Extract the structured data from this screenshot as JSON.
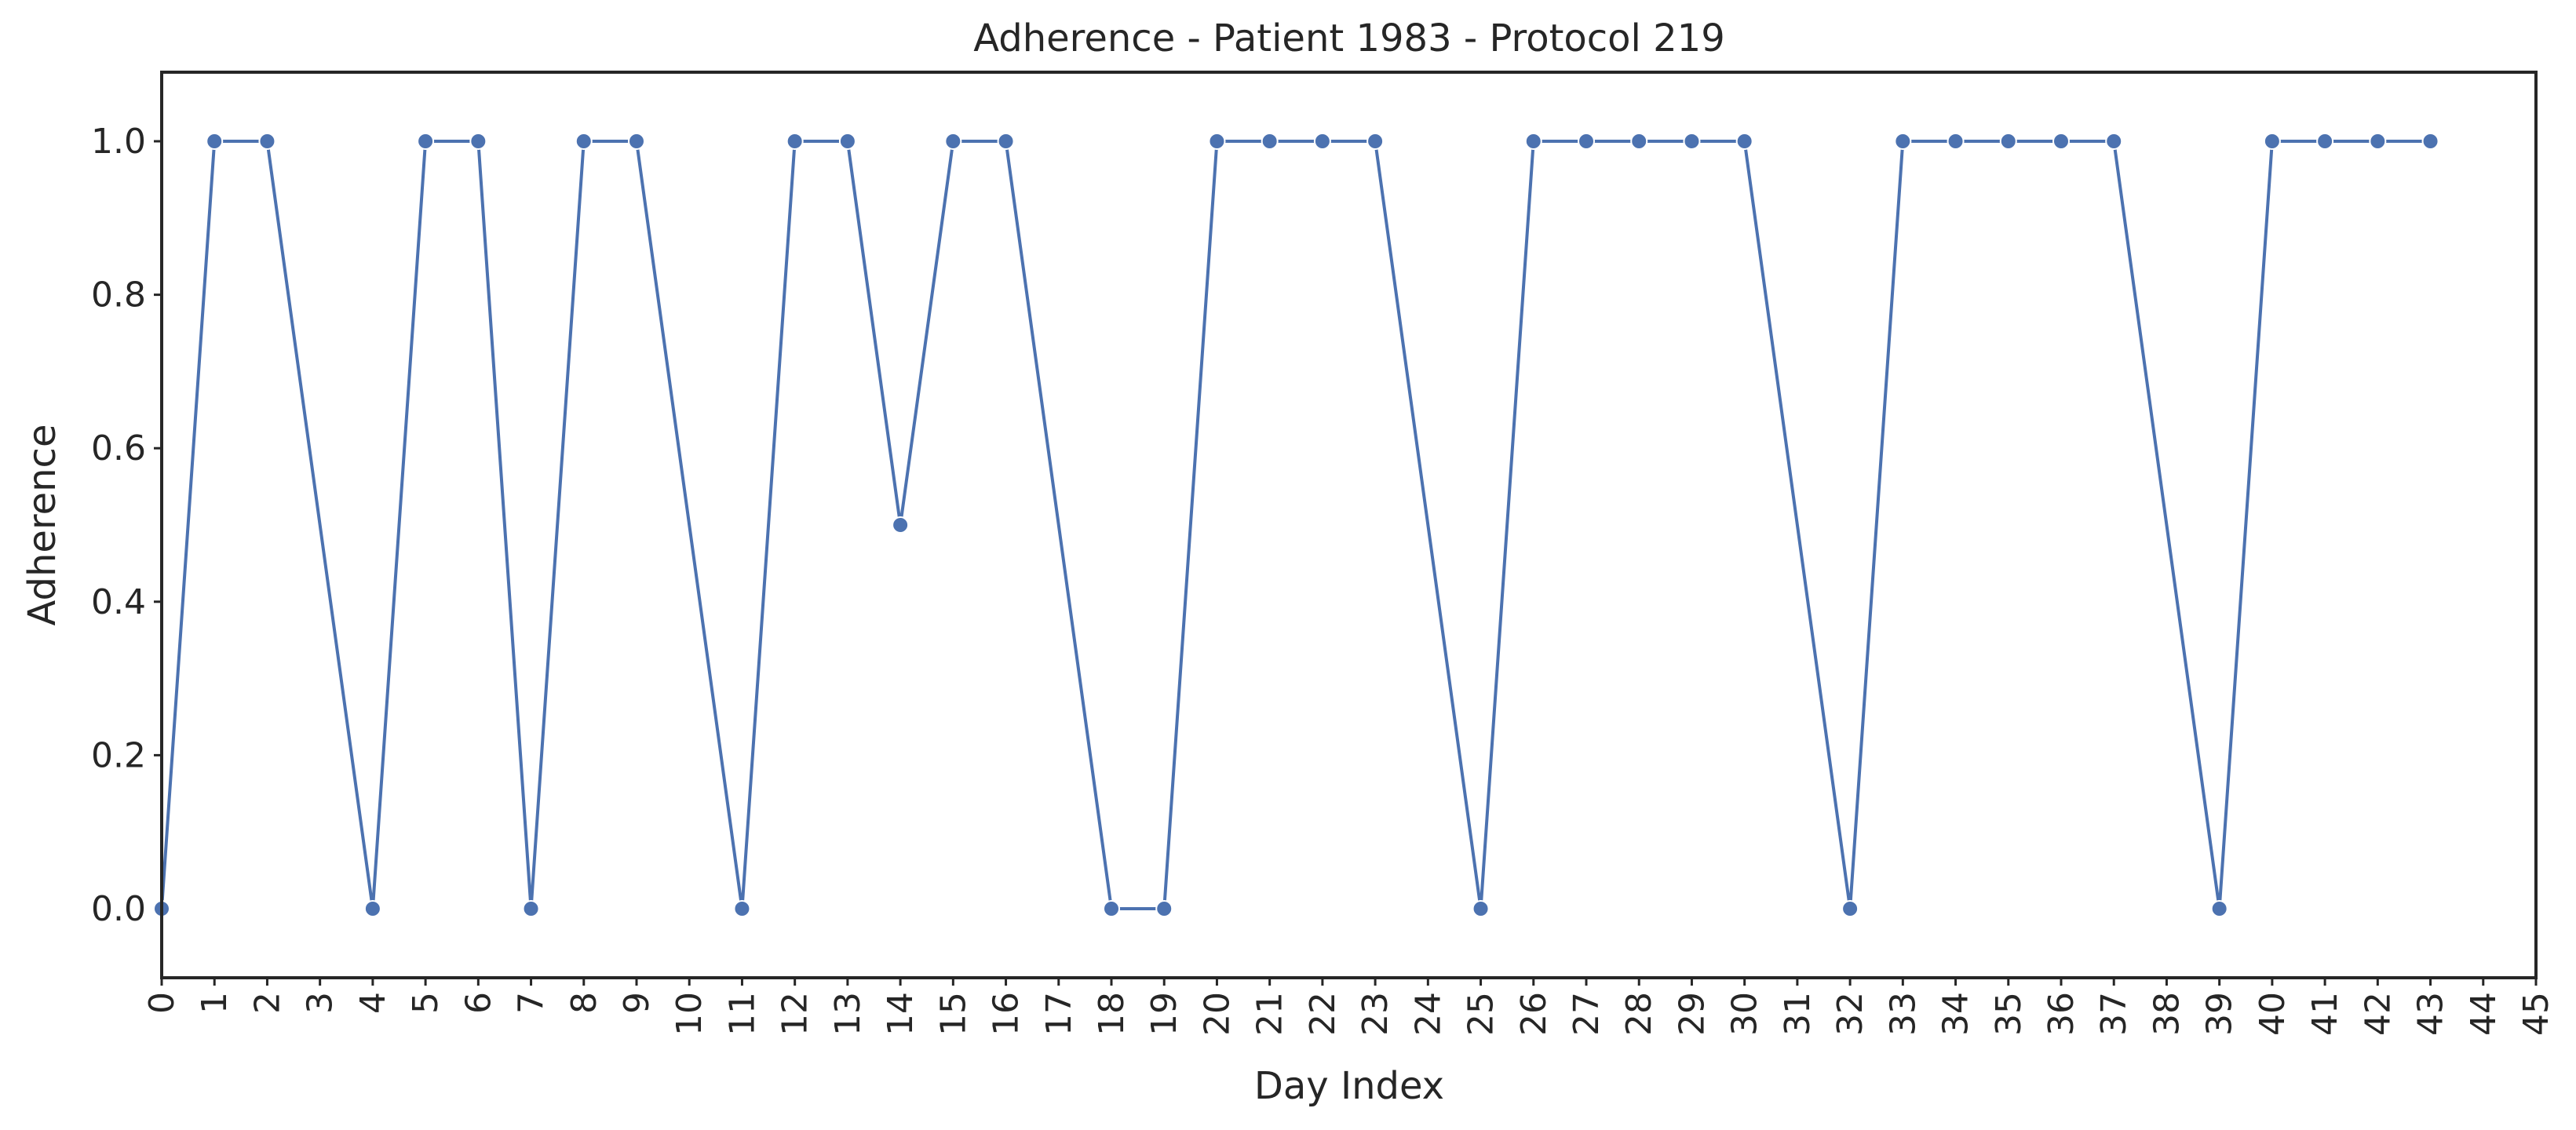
{
  "chart_data": {
    "type": "line",
    "title": "Adherence - Patient 1983 - Protocol 219",
    "xlabel": "Day Index",
    "ylabel": "Adherence",
    "xlim": [
      0,
      45
    ],
    "ylim": [
      -0.09,
      1.09
    ],
    "x_ticks": [
      "0",
      "1",
      "2",
      "3",
      "4",
      "5",
      "6",
      "7",
      "8",
      "9",
      "10",
      "11",
      "12",
      "13",
      "14",
      "15",
      "16",
      "17",
      "18",
      "19",
      "20",
      "21",
      "22",
      "23",
      "24",
      "25",
      "26",
      "27",
      "28",
      "29",
      "30",
      "31",
      "32",
      "33",
      "34",
      "35",
      "36",
      "37",
      "38",
      "39",
      "40",
      "41",
      "42",
      "43",
      "44",
      "45"
    ],
    "y_ticks": [
      "0.0",
      "0.2",
      "0.4",
      "0.6",
      "0.8",
      "1.0"
    ],
    "grid": false,
    "marker": "circle",
    "series": [
      {
        "color": "#4c72b0",
        "x": [
          0,
          1,
          2,
          4,
          5,
          6,
          7,
          8,
          9,
          11,
          12,
          13,
          14,
          15,
          16,
          18,
          19,
          20,
          21,
          22,
          23,
          25,
          26,
          27,
          28,
          29,
          30,
          32,
          33,
          34,
          35,
          36,
          37,
          39,
          40,
          41,
          42,
          43
        ],
        "y": [
          0,
          1,
          1,
          0,
          1,
          1,
          0,
          1,
          1,
          0,
          1,
          1,
          0.5,
          1,
          1,
          0,
          0,
          1,
          1,
          1,
          1,
          0,
          1,
          1,
          1,
          1,
          1,
          0,
          1,
          1,
          1,
          1,
          1,
          0,
          1,
          1,
          1,
          1
        ]
      }
    ]
  }
}
